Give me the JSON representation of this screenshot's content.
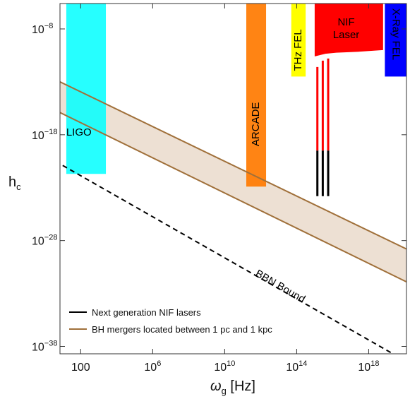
{
  "chart_data": {
    "type": "area",
    "xlabel": "ω",
    "xlabel_sub": "g",
    "xlabel_unit": " [Hz]",
    "ylabel": "h",
    "ylabel_sub": "c",
    "x_scale": "log",
    "y_scale": "log",
    "xlim_log10": [
      0.85,
      20.1
    ],
    "ylim_log10": [
      -38.7,
      -5.6
    ],
    "x_ticks": [
      {
        "log10": 2,
        "base": "100",
        "exp": ""
      },
      {
        "log10": 6,
        "base": "10",
        "exp": "6"
      },
      {
        "log10": 10,
        "base": "10",
        "exp": "10"
      },
      {
        "log10": 14,
        "base": "10",
        "exp": "14"
      },
      {
        "log10": 18,
        "base": "10",
        "exp": "18"
      }
    ],
    "y_ticks": [
      {
        "log10": -8,
        "base": "10",
        "exp": "−8"
      },
      {
        "log10": -18,
        "base": "10",
        "exp": "−18"
      },
      {
        "log10": -28,
        "base": "10",
        "exp": "−28"
      },
      {
        "log10": -38,
        "base": "10",
        "exp": "−38"
      }
    ],
    "grid": false,
    "legend_position": "bottom-left",
    "bands": [
      {
        "label": "LIGO",
        "color": "#00ffff",
        "alpha": 0.85,
        "x_log10": [
          1.2,
          3.4
        ],
        "y_log10": [
          -5.6,
          -21.7
        ],
        "label_at": [
          1.9,
          -17.8
        ],
        "label_rotation": 0
      },
      {
        "label": "ARCADE",
        "color": "#ff7a00",
        "alpha": 0.92,
        "x_log10": [
          11.2,
          12.3
        ],
        "y_log10": [
          -5.6,
          -22.9
        ],
        "label_at": [
          11.75,
          -17.0
        ],
        "label_rotation": -90
      },
      {
        "label": "THz FEL",
        "color": "#ffff00",
        "alpha": 1,
        "x_log10": [
          13.7,
          14.5
        ],
        "y_log10": [
          -5.6,
          -12.5
        ],
        "label_at": [
          14.1,
          -10.0
        ],
        "label_rotation": -90
      },
      {
        "label": "X-Ray FEL",
        "color": "#0000ff",
        "alpha": 1,
        "x_log10": [
          18.9,
          20.1
        ],
        "y_log10": [
          -5.6,
          -12.5
        ],
        "label_at": [
          19.5,
          -8.5
        ],
        "label_rotation": 90
      }
    ],
    "nif": {
      "label_line1": "NIF",
      "label_line2": "Laser",
      "color": "#ff0000",
      "x_log10": [
        15.0,
        18.8
      ],
      "top_log10": -5.6,
      "bottom_log10": -9.9,
      "curve_y_log10": [
        -10.6,
        -10.35,
        -10.25,
        -10.15,
        -10.0
      ],
      "curve_x_log10": [
        15.0,
        15.6,
        16.2,
        17.5,
        18.8
      ],
      "lines_x_log10": [
        15.15,
        15.45,
        15.75
      ],
      "lines_red_top_log10": [
        -11.6,
        -11.0,
        -10.8
      ],
      "lines_red_bottom_log10": [
        -19.5,
        -19.5,
        -19.5
      ],
      "lines_black_bottom_log10": [
        -23.8,
        -23.8,
        -23.8
      ],
      "label_at": [
        16.75,
        -8.2
      ]
    },
    "series": [
      {
        "name": "Next generation NIF lasers",
        "color": "#000000",
        "style": "solid"
      },
      {
        "name": "BH mergers located between 1 pc and 1 kpc",
        "color": "#a0703a",
        "style": "solid",
        "upper_x_log10": [
          0.85,
          20.1
        ],
        "upper_y_log10": [
          -13.0,
          -28.8
        ],
        "lower_x_log10": [
          0.85,
          20.1
        ],
        "lower_y_log10": [
          -15.9,
          -31.9
        ],
        "fill": "#e8d8c8"
      }
    ],
    "bbn": {
      "label": "BBN Bound",
      "color": "#000000",
      "style": "dashed",
      "x_log10": [
        1.0,
        19.35
      ],
      "y_log10": [
        -20.9,
        -38.7
      ],
      "label_at": [
        13.0,
        -32.6
      ]
    }
  }
}
